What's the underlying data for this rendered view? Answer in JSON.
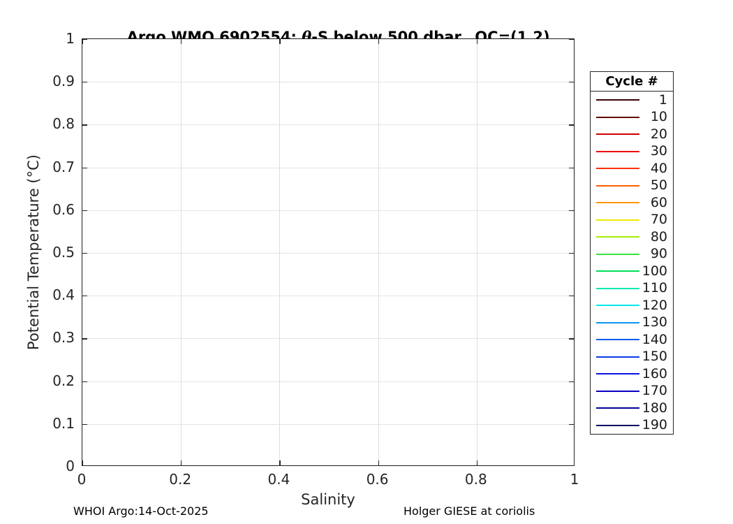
{
  "title": {
    "prefix": "Argo WMO 6902554: ",
    "theta": "θ",
    "suffix": "-S below 500 dbar,  QC=(1,2)"
  },
  "footer": {
    "left": "WHOI Argo:14-Oct-2025",
    "right": "Holger GIESE at coriolis"
  },
  "chart_data": {
    "type": "line",
    "title": "Argo WMO 6902554: θ-S below 500 dbar,  QC=(1,2)",
    "xlabel": "Salinity",
    "ylabel": "Potential Temperature (°C)",
    "xlim": [
      0,
      1
    ],
    "ylim": [
      0,
      1
    ],
    "x_ticks": [
      0,
      0.2,
      0.4,
      0.6,
      0.8,
      1
    ],
    "x_tick_labels": [
      "0",
      "0.2",
      "0.4",
      "0.6",
      "0.8",
      "1"
    ],
    "y_ticks": [
      0,
      0.1,
      0.2,
      0.3,
      0.4,
      0.5,
      0.6,
      0.7,
      0.8,
      0.9,
      1
    ],
    "y_tick_labels": [
      "0",
      "0.1",
      "0.2",
      "0.3",
      "0.4",
      "0.5",
      "0.6",
      "0.7",
      "0.8",
      "0.9",
      "1"
    ],
    "grid": true,
    "series": [],
    "note": "plot area contains no data curves; axes at default 0-1 range",
    "legend": {
      "title": "Cycle #",
      "position": "right-outside",
      "entries": [
        {
          "label": "1",
          "color": "#3a0000"
        },
        {
          "label": "10",
          "color": "#640000"
        },
        {
          "label": "20",
          "color": "#d00000"
        },
        {
          "label": "30",
          "color": "#f00500"
        },
        {
          "label": "40",
          "color": "#ff2e00"
        },
        {
          "label": "50",
          "color": "#ff6000"
        },
        {
          "label": "60",
          "color": "#ff9600"
        },
        {
          "label": "70",
          "color": "#eaea00"
        },
        {
          "label": "80",
          "color": "#a6ee00"
        },
        {
          "label": "90",
          "color": "#3ce23c"
        },
        {
          "label": "100",
          "color": "#00e05a"
        },
        {
          "label": "110",
          "color": "#00e8b4"
        },
        {
          "label": "120",
          "color": "#00e8ea"
        },
        {
          "label": "130",
          "color": "#0a96f2"
        },
        {
          "label": "140",
          "color": "#0a5cec"
        },
        {
          "label": "150",
          "color": "#0a3ce6"
        },
        {
          "label": "160",
          "color": "#0a14dc"
        },
        {
          "label": "170",
          "color": "#0a00c0"
        },
        {
          "label": "180",
          "color": "#050092"
        },
        {
          "label": "190",
          "color": "#0a0a64"
        }
      ]
    }
  },
  "colors": {
    "axis": "#262626",
    "grid": "#e0e0e0",
    "background": "#ffffff"
  }
}
